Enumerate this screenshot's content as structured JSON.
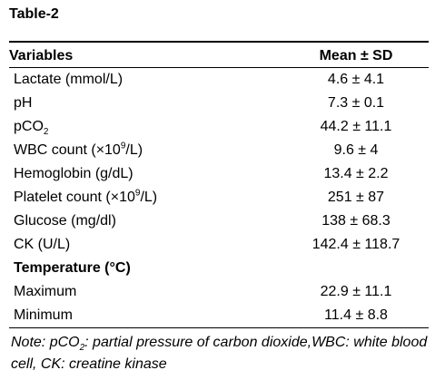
{
  "table": {
    "title": "Table-2",
    "headers": {
      "variable": "Variables",
      "value": "Mean ± SD"
    },
    "rows": [
      {
        "label": "Lactate (mmol/L)",
        "value": "4.6 ± 4.1"
      },
      {
        "label": "pH",
        "value": "7.3 ± 0.1"
      },
      {
        "label_main": "pCO",
        "label_sub": "2",
        "value": "44.2 ± 11.1"
      },
      {
        "label_pre": "WBC count (×10",
        "label_sup": "9",
        "label_post": "/L)",
        "value": "9.6 ± 4"
      },
      {
        "label": "Hemoglobin (g/dL)",
        "value": "13.4 ± 2.2"
      },
      {
        "label_pre": "Platelet count (×10",
        "label_sup": "9",
        "label_post": "/L)",
        "value": "251 ± 87"
      },
      {
        "label": "Glucose (mg/dl)",
        "value": "138 ± 68.3"
      },
      {
        "label": "CK (U/L)",
        "value": "142.4 ± 118.7"
      }
    ],
    "section": {
      "label": "Temperature (°C)",
      "rows": [
        {
          "label": "Maximum",
          "value": "22.9 ± 11.1"
        },
        {
          "label": "Minimum",
          "value": "11.4 ± 8.8"
        }
      ]
    }
  },
  "note": {
    "pre": "Note: pCO",
    "sub": "2",
    "post": ": partial pressure of carbon dioxide,WBC: white blood cell, CK: creatine kinase"
  }
}
